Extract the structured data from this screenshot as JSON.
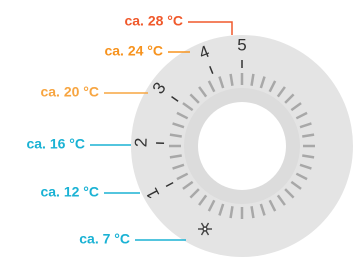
{
  "labels": [
    "ca. 28 °C",
    "ca. 24 °C",
    "ca. 20 °C",
    "ca. 16 °C",
    "ca. 12 °C",
    "ca. 7 °C"
  ],
  "dial": {
    "numbers": [
      "1",
      "2",
      "3",
      "4",
      "5"
    ]
  }
}
